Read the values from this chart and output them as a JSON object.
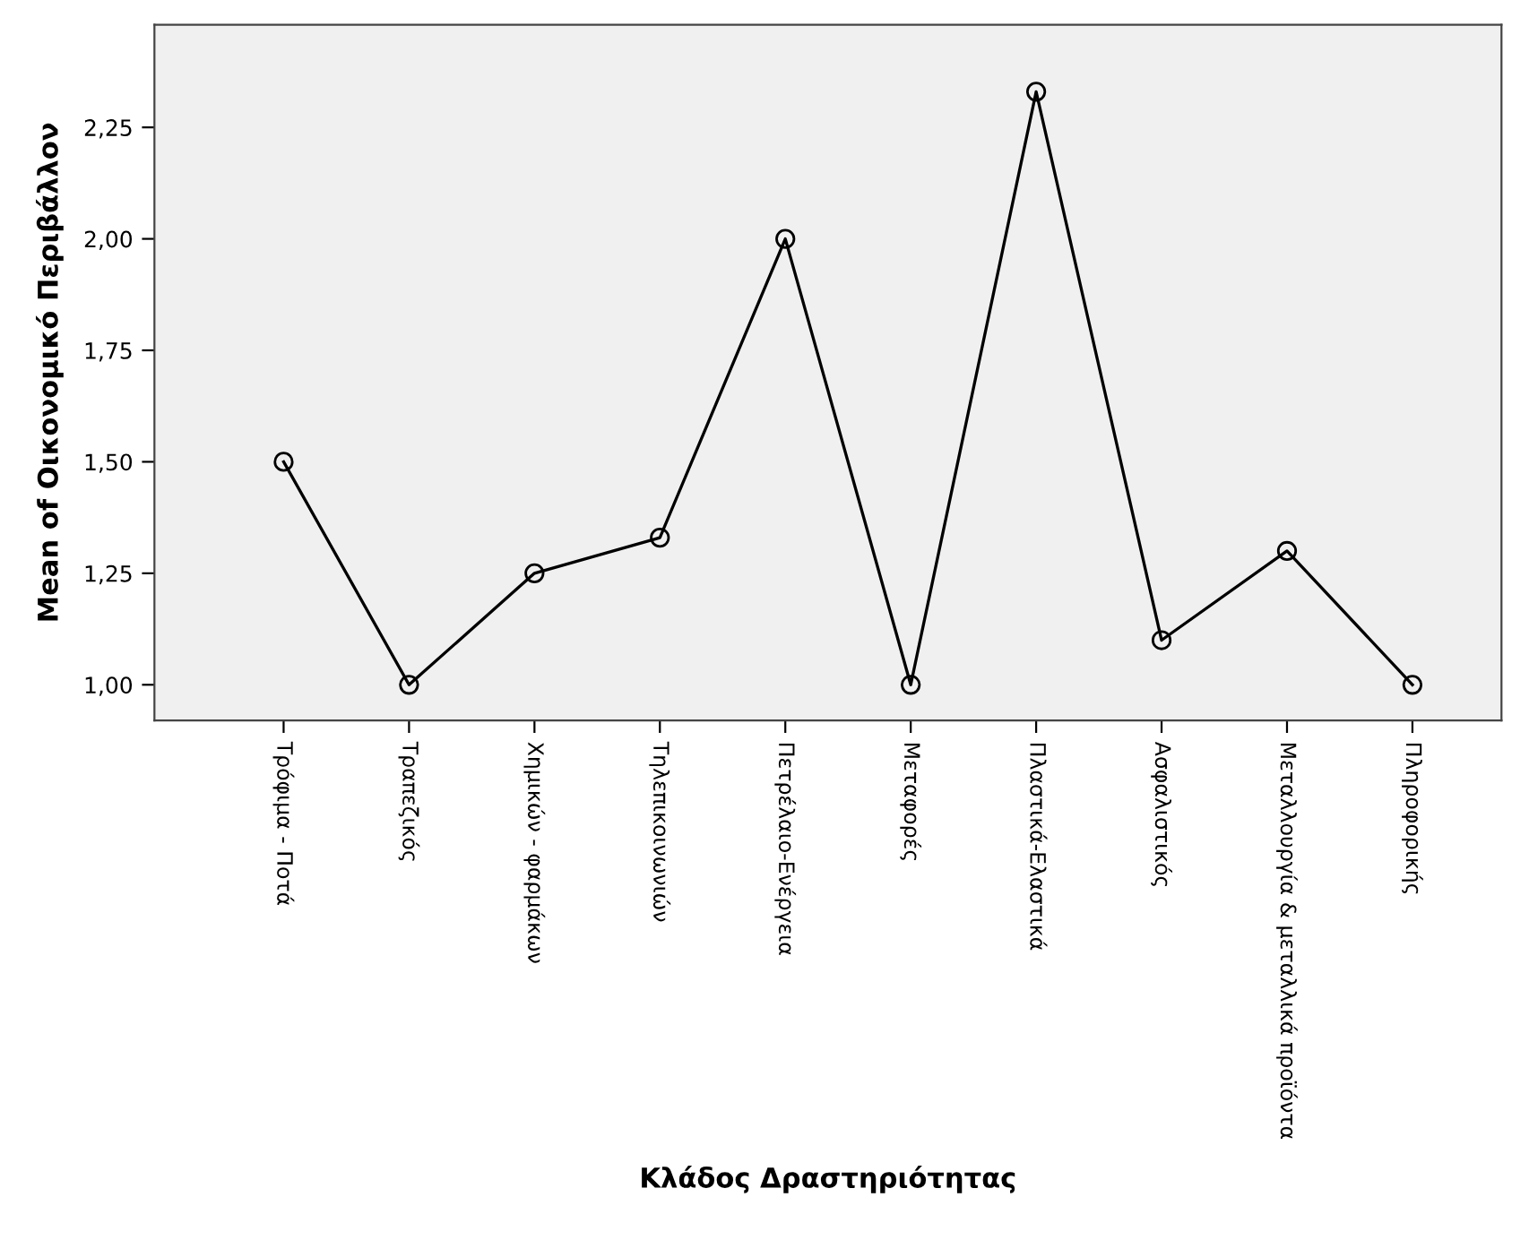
{
  "chart_data": {
    "type": "line",
    "xlabel": "Κλάδος Δραστηριότητας",
    "ylabel": "Mean of Οικονομικό Περιβάλλον",
    "categories": [
      "Τρόφιμα - Ποτά",
      "Τραπεζικός",
      "Χημικών - φαρμάκων",
      "Τηλεπικοινωνιών",
      "Πετρέλαιο-Ενέργεια",
      "Μεταφορές",
      "Πλαστικά-Ελαστικά",
      "Ασφαλιστικός",
      "Μεταλλουργία & μεταλλικά προϊόντα",
      "Πληροφορικής"
    ],
    "series": [
      {
        "color": "#000000",
        "values": [
          1.5,
          1.0,
          1.25,
          1.33,
          2.0,
          1.0,
          2.33,
          1.1,
          1.3,
          1.0
        ]
      }
    ],
    "ylim": [
      0.92,
      2.48
    ],
    "yticks": [
      {
        "value": 1.0,
        "label": "1,00"
      },
      {
        "value": 1.25,
        "label": "1,25"
      },
      {
        "value": 1.5,
        "label": "1,50"
      },
      {
        "value": 1.75,
        "label": "1,75"
      },
      {
        "value": 2.0,
        "label": "2,00"
      },
      {
        "value": 2.25,
        "label": "2,25"
      }
    ],
    "grid": false,
    "legend": false,
    "marker": "circle",
    "line_style": "solid"
  }
}
